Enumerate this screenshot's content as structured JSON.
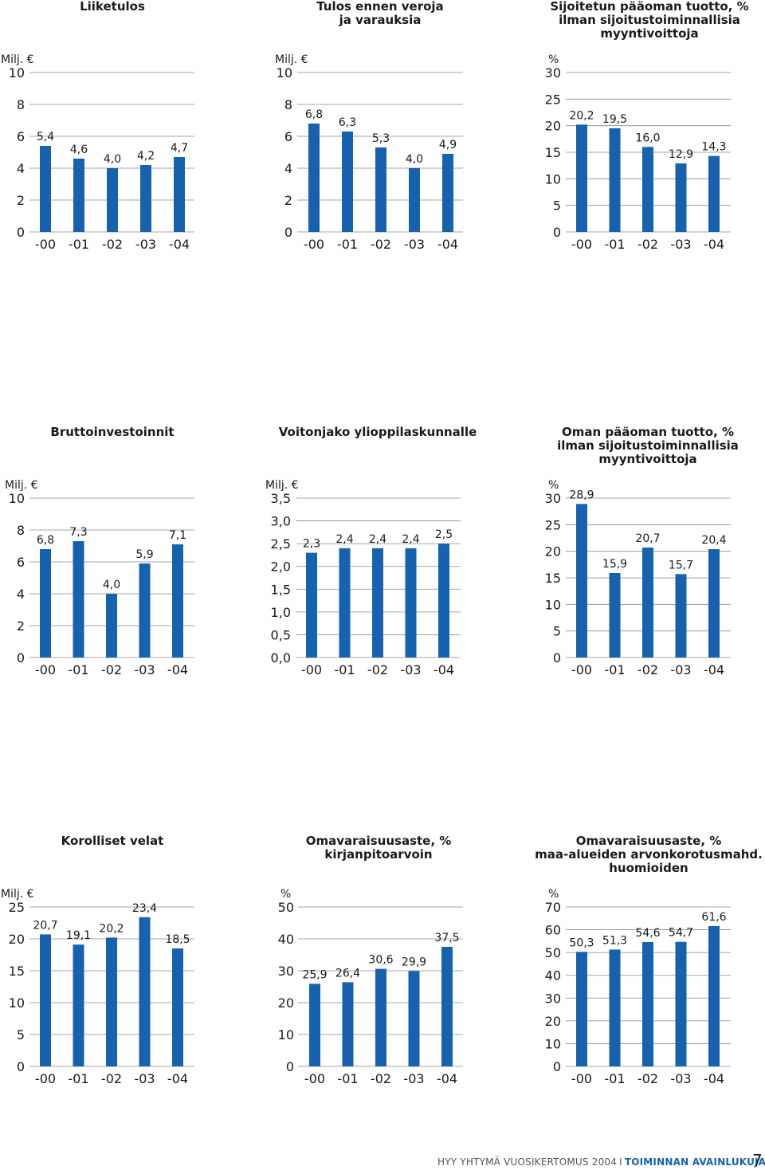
{
  "colors": {
    "bar": "#1762ae",
    "grid": "#8a8a8a",
    "text": "#1a1a1a",
    "accent": "#1762ae"
  },
  "chart_data": [
    {
      "type": "bar",
      "title": [
        "Liiketulos"
      ],
      "unit": "Milj. €",
      "unit_tick": "10",
      "ylim": [
        0,
        10
      ],
      "yticks": [
        "0",
        "2",
        "4",
        "6",
        "8"
      ],
      "categories": [
        "-00",
        "-01",
        "-02",
        "-03",
        "-04"
      ],
      "values": [
        5.4,
        4.6,
        4.0,
        4.2,
        4.7
      ],
      "labels": [
        "5,4",
        "4,6",
        "4,0",
        "4,2",
        "4,7"
      ]
    },
    {
      "type": "bar",
      "title": [
        "Tulos ennen veroja",
        "ja varauksia"
      ],
      "unit": "Milj. €",
      "unit_tick": "10",
      "ylim": [
        0,
        10
      ],
      "yticks": [
        "0",
        "2",
        "4",
        "6",
        "8"
      ],
      "categories": [
        "-00",
        "-01",
        "-02",
        "-03",
        "-04"
      ],
      "values": [
        6.8,
        6.3,
        5.3,
        4.0,
        4.9
      ],
      "labels": [
        "6,8",
        "6,3",
        "5,3",
        "4,0",
        "4,9"
      ]
    },
    {
      "type": "bar",
      "title": [
        "Sijoitetun pääoman tuotto, %",
        "ilman sijoitustoiminnallisia",
        "myyntivoittoja"
      ],
      "unit": "%",
      "unit_tick": "30",
      "ylim": [
        0,
        30
      ],
      "yticks": [
        "0",
        "5",
        "10",
        "15",
        "20",
        "25"
      ],
      "categories": [
        "-00",
        "-01",
        "-02",
        "-03",
        "-04"
      ],
      "values": [
        20.2,
        19.5,
        16.0,
        12.9,
        14.3
      ],
      "labels": [
        "20,2",
        "19,5",
        "16,0",
        "12,9",
        "14,3"
      ]
    },
    {
      "type": "bar",
      "title": [
        "Bruttoinvestoinnit"
      ],
      "unit": "Milj. €",
      "unit_tick": "10",
      "ylim": [
        0,
        10
      ],
      "yticks": [
        "0",
        "2",
        "4",
        "6",
        "8"
      ],
      "categories": [
        "-00",
        "-01",
        "-02",
        "-03",
        "-04"
      ],
      "values": [
        6.8,
        7.3,
        4.0,
        5.9,
        7.1
      ],
      "labels": [
        "6,8",
        "7,3",
        "4,0",
        "5,9",
        "7,1"
      ]
    },
    {
      "type": "bar",
      "title": [
        "Voitonjako ylioppilaskunnalle"
      ],
      "unit": "Milj. €",
      "unit_tick": "3,5",
      "ylim": [
        0,
        3.5
      ],
      "yticks": [
        "0,0",
        "0,5",
        "1,0",
        "1,5",
        "2,0",
        "2,5",
        "3,0"
      ],
      "categories": [
        "-00",
        "-01",
        "-02",
        "-03",
        "-04"
      ],
      "values": [
        2.3,
        2.4,
        2.4,
        2.4,
        2.5
      ],
      "labels": [
        "2,3",
        "2,4",
        "2,4",
        "2,4",
        "2,5"
      ]
    },
    {
      "type": "bar",
      "title": [
        "Oman pääoman tuotto, %",
        "ilman sijoitustoiminnallisia",
        "myyntivoittoja"
      ],
      "unit": "%",
      "unit_tick": "30",
      "ylim": [
        0,
        30
      ],
      "yticks": [
        "0",
        "5",
        "10",
        "15",
        "20",
        "25"
      ],
      "categories": [
        "-00",
        "-01",
        "-02",
        "-03",
        "-04"
      ],
      "values": [
        28.9,
        15.9,
        20.7,
        15.7,
        20.4
      ],
      "labels": [
        "28,9",
        "15,9",
        "20,7",
        "15,7",
        "20,4"
      ]
    },
    {
      "type": "bar",
      "title": [
        "Korolliset velat"
      ],
      "unit": "Milj. €",
      "unit_tick": "25",
      "ylim": [
        0,
        25
      ],
      "yticks": [
        "0",
        "5",
        "10",
        "15",
        "20"
      ],
      "categories": [
        "-00",
        "-01",
        "-02",
        "-03",
        "-04"
      ],
      "values": [
        20.7,
        19.1,
        20.2,
        23.4,
        18.5
      ],
      "labels": [
        "20,7",
        "19,1",
        "20,2",
        "23,4",
        "18,5"
      ]
    },
    {
      "type": "bar",
      "title": [
        "Omavaraisuusaste, %",
        "kirjanpitoarvoin"
      ],
      "unit": "%",
      "unit_tick": "50",
      "ylim": [
        0,
        50
      ],
      "yticks": [
        "0",
        "10",
        "20",
        "30",
        "40"
      ],
      "categories": [
        "-00",
        "-01",
        "-02",
        "-03",
        "-04"
      ],
      "values": [
        25.9,
        26.4,
        30.6,
        29.9,
        37.5
      ],
      "labels": [
        "25,9",
        "26,4",
        "30,6",
        "29,9",
        "37,5"
      ]
    },
    {
      "type": "bar",
      "title": [
        "Omavaraisuusaste, %",
        "maa-alueiden arvonkorotusmahd.",
        "huomioiden"
      ],
      "unit": "%",
      "unit_tick": "70",
      "ylim": [
        0,
        70
      ],
      "yticks": [
        "0",
        "10",
        "20",
        "30",
        "40",
        "50",
        "60"
      ],
      "categories": [
        "-00",
        "-01",
        "-02",
        "-03",
        "-04"
      ],
      "values": [
        50.3,
        51.3,
        54.6,
        54.7,
        61.6
      ],
      "labels": [
        "50,3",
        "51,3",
        "54,6",
        "54,7",
        "61,6"
      ]
    }
  ],
  "footer": {
    "publication": "HYY YHTYMÄ VUOSIKERTOMUS 2004",
    "separator": "I",
    "section": "TOIMINNAN AVAINLUKUJA",
    "page": "7"
  }
}
